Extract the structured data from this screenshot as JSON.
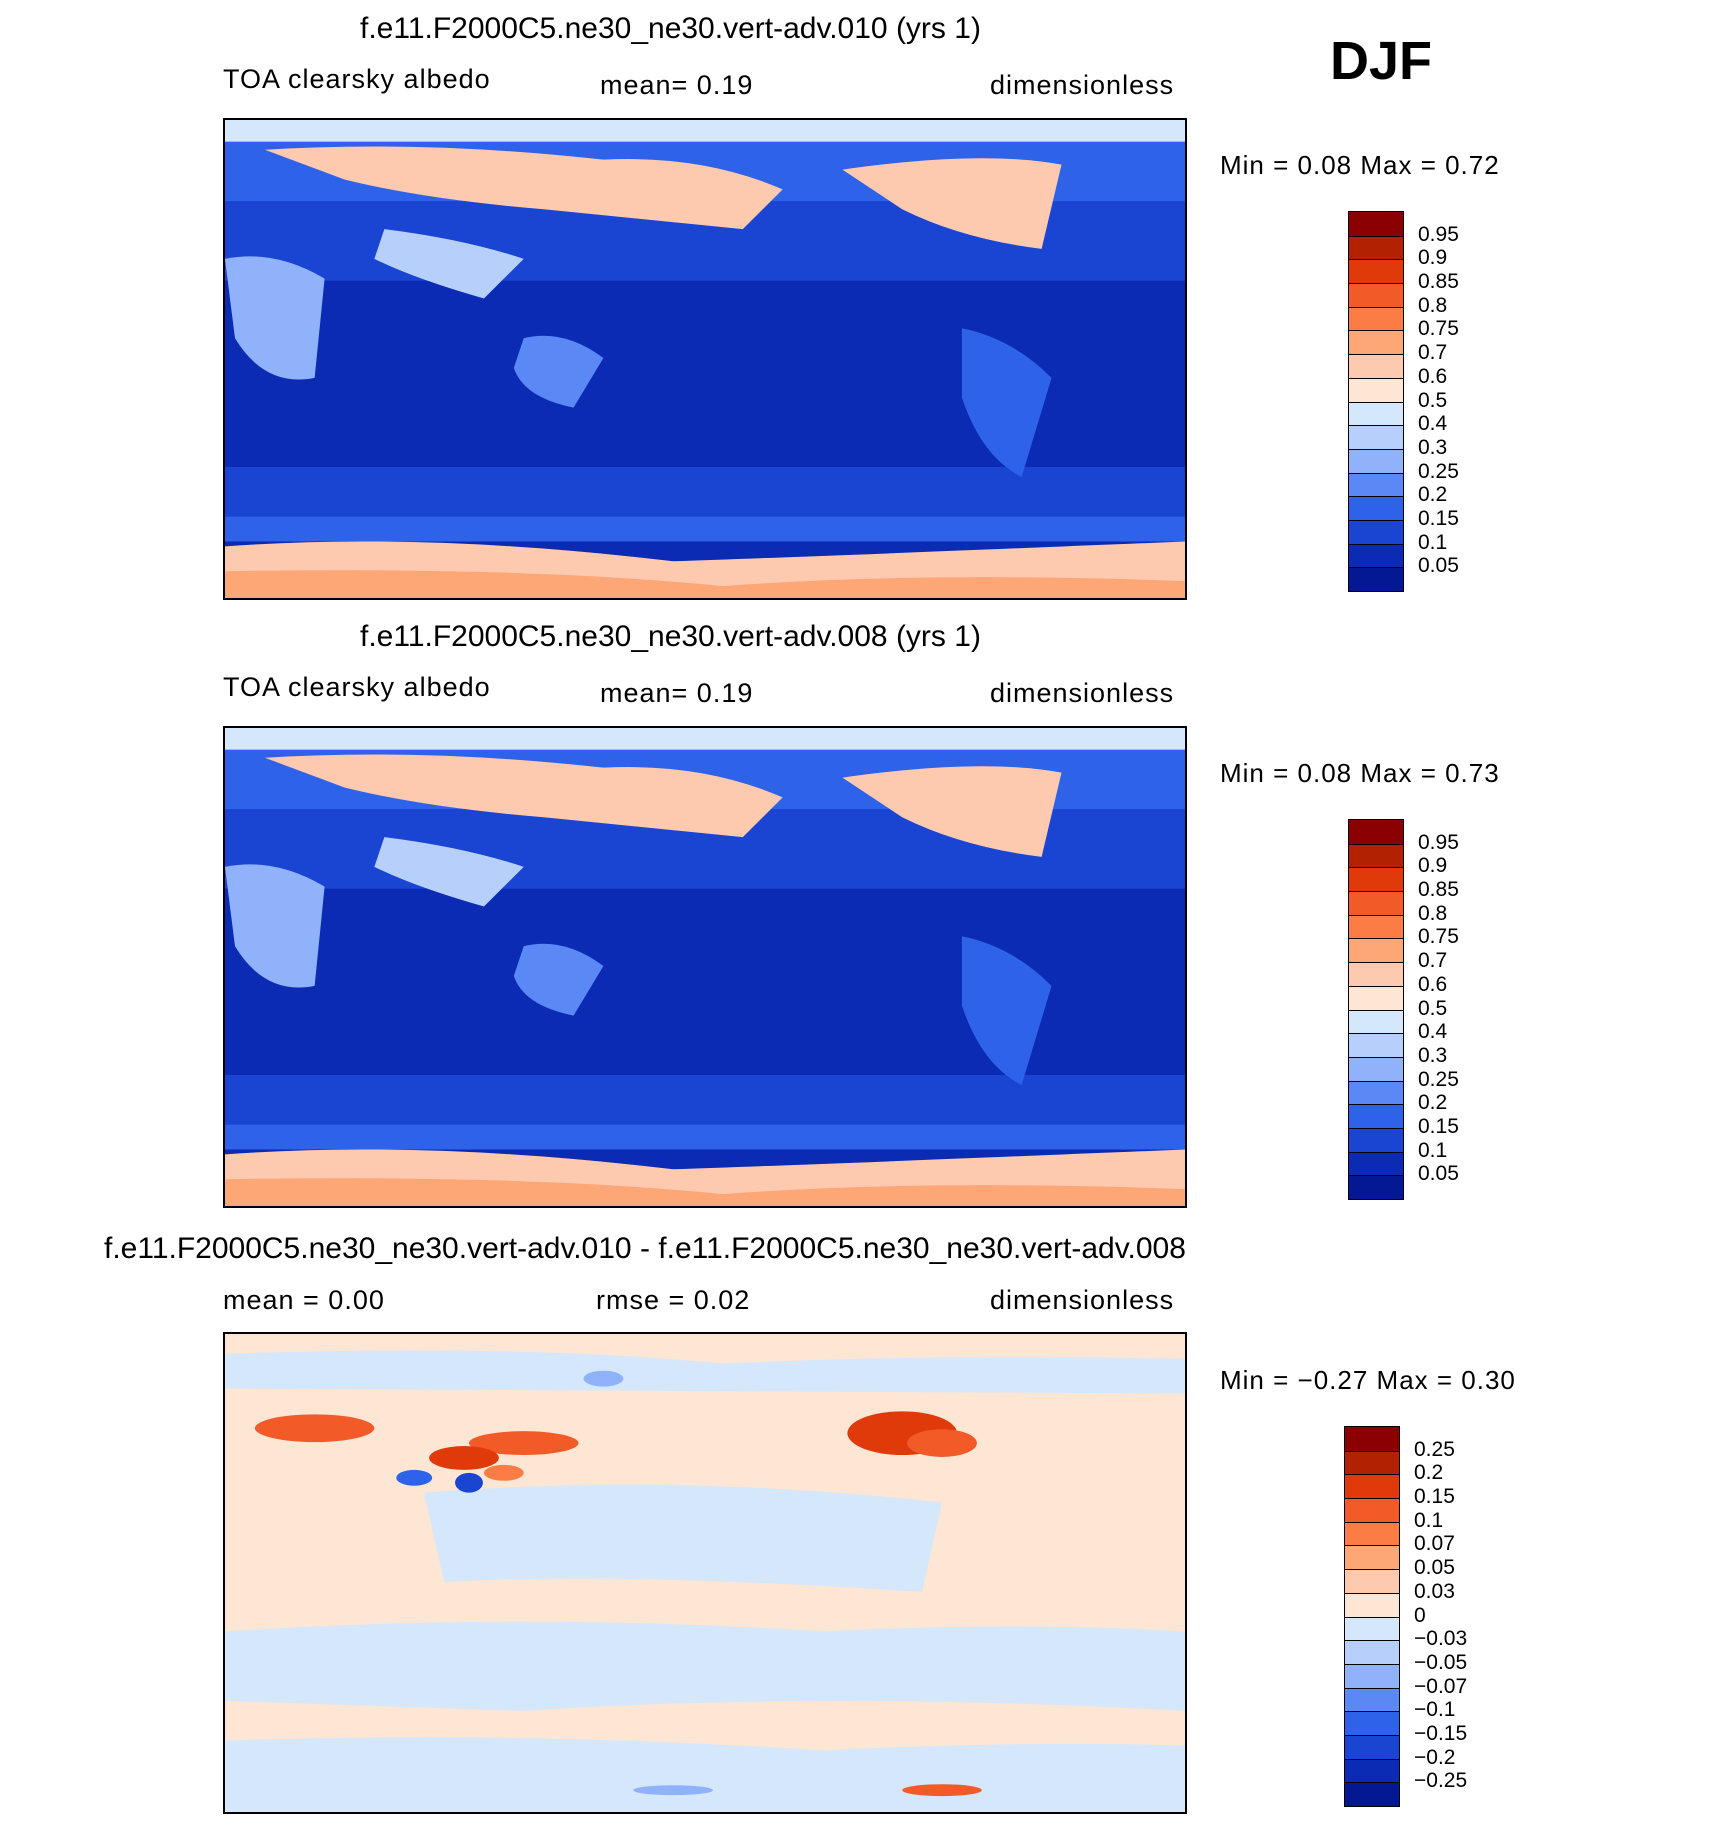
{
  "season": "DJF",
  "panels": [
    {
      "title": "f.e11.F2000C5.ne30_ne30.vert-adv.010 (yrs 1)",
      "variable": "TOA clearsky albedo",
      "stat1": "mean=    0.19",
      "units": "dimensionless",
      "minmax": "Min  =     0.08  Max  =     0.72",
      "colorbar_labels": [
        "0.95",
        "0.9",
        "0.85",
        "0.8",
        "0.75",
        "0.7",
        "0.6",
        "0.5",
        "0.4",
        "0.3",
        "0.25",
        "0.2",
        "0.15",
        "0.1",
        "0.05"
      ],
      "colors": [
        "#8b0000",
        "#b22200",
        "#e03a0a",
        "#f25a28",
        "#fb7c44",
        "#fda676",
        "#fdcab0",
        "#fde6d4",
        "#d5e7fb",
        "#b6d0fb",
        "#90b2fa",
        "#5a88f5",
        "#2e62e8",
        "#1a44d2",
        "#0c2bb5",
        "#051893"
      ]
    },
    {
      "title": "f.e11.F2000C5.ne30_ne30.vert-adv.008 (yrs 1)",
      "variable": "TOA clearsky albedo",
      "stat1": "mean=    0.19",
      "units": "dimensionless",
      "minmax": "Min  =     0.08  Max  =     0.73",
      "colorbar_labels": [
        "0.95",
        "0.9",
        "0.85",
        "0.8",
        "0.75",
        "0.7",
        "0.6",
        "0.5",
        "0.4",
        "0.3",
        "0.25",
        "0.2",
        "0.15",
        "0.1",
        "0.05"
      ],
      "colors": [
        "#8b0000",
        "#b22200",
        "#e03a0a",
        "#f25a28",
        "#fb7c44",
        "#fda676",
        "#fdcab0",
        "#fde6d4",
        "#d5e7fb",
        "#b6d0fb",
        "#90b2fa",
        "#5a88f5",
        "#2e62e8",
        "#1a44d2",
        "#0c2bb5",
        "#051893"
      ]
    },
    {
      "title": "f.e11.F2000C5.ne30_ne30.vert-adv.010 - f.e11.F2000C5.ne30_ne30.vert-adv.008",
      "stat1": "mean  =     0.00",
      "stat2": "rmse  =     0.02",
      "units": "dimensionless",
      "minmax": "Min  =    −0.27  Max  =     0.30",
      "colorbar_labels": [
        "0.25",
        "0.2",
        "0.15",
        "0.1",
        "0.07",
        "0.05",
        "0.03",
        "0",
        "−0.03",
        "−0.05",
        "−0.07",
        "−0.1",
        "−0.15",
        "−0.2",
        "−0.25"
      ],
      "colors": [
        "#8b0000",
        "#b22200",
        "#e03a0a",
        "#f25a28",
        "#fb7c44",
        "#fda676",
        "#fdcab0",
        "#fde6d4",
        "#d5e7fb",
        "#b6d0fb",
        "#90b2fa",
        "#5a88f5",
        "#2e62e8",
        "#1a44d2",
        "#0c2bb5",
        "#051893"
      ]
    }
  ],
  "chart_data": [
    {
      "type": "heatmap",
      "title": "f.e11.F2000C5.ne30_ne30.vert-adv.010 (yrs 1)",
      "variable": "TOA clearsky albedo",
      "units": "dimensionless",
      "season": "DJF",
      "mean": 0.19,
      "min": 0.08,
      "max": 0.72,
      "contour_levels": [
        0.05,
        0.1,
        0.15,
        0.2,
        0.25,
        0.3,
        0.4,
        0.5,
        0.6,
        0.7,
        0.75,
        0.8,
        0.85,
        0.9,
        0.95
      ]
    },
    {
      "type": "heatmap",
      "title": "f.e11.F2000C5.ne30_ne30.vert-adv.008 (yrs 1)",
      "variable": "TOA clearsky albedo",
      "units": "dimensionless",
      "season": "DJF",
      "mean": 0.19,
      "min": 0.08,
      "max": 0.73,
      "contour_levels": [
        0.05,
        0.1,
        0.15,
        0.2,
        0.25,
        0.3,
        0.4,
        0.5,
        0.6,
        0.7,
        0.75,
        0.8,
        0.85,
        0.9,
        0.95
      ]
    },
    {
      "type": "heatmap",
      "title": "f.e11.F2000C5.ne30_ne30.vert-adv.010 - f.e11.F2000C5.ne30_ne30.vert-adv.008",
      "units": "dimensionless",
      "season": "DJF",
      "mean": 0.0,
      "rmse": 0.02,
      "min": -0.27,
      "max": 0.3,
      "contour_levels": [
        -0.25,
        -0.2,
        -0.15,
        -0.1,
        -0.07,
        -0.05,
        -0.03,
        0,
        0.03,
        0.05,
        0.07,
        0.1,
        0.15,
        0.2,
        0.25
      ]
    }
  ]
}
